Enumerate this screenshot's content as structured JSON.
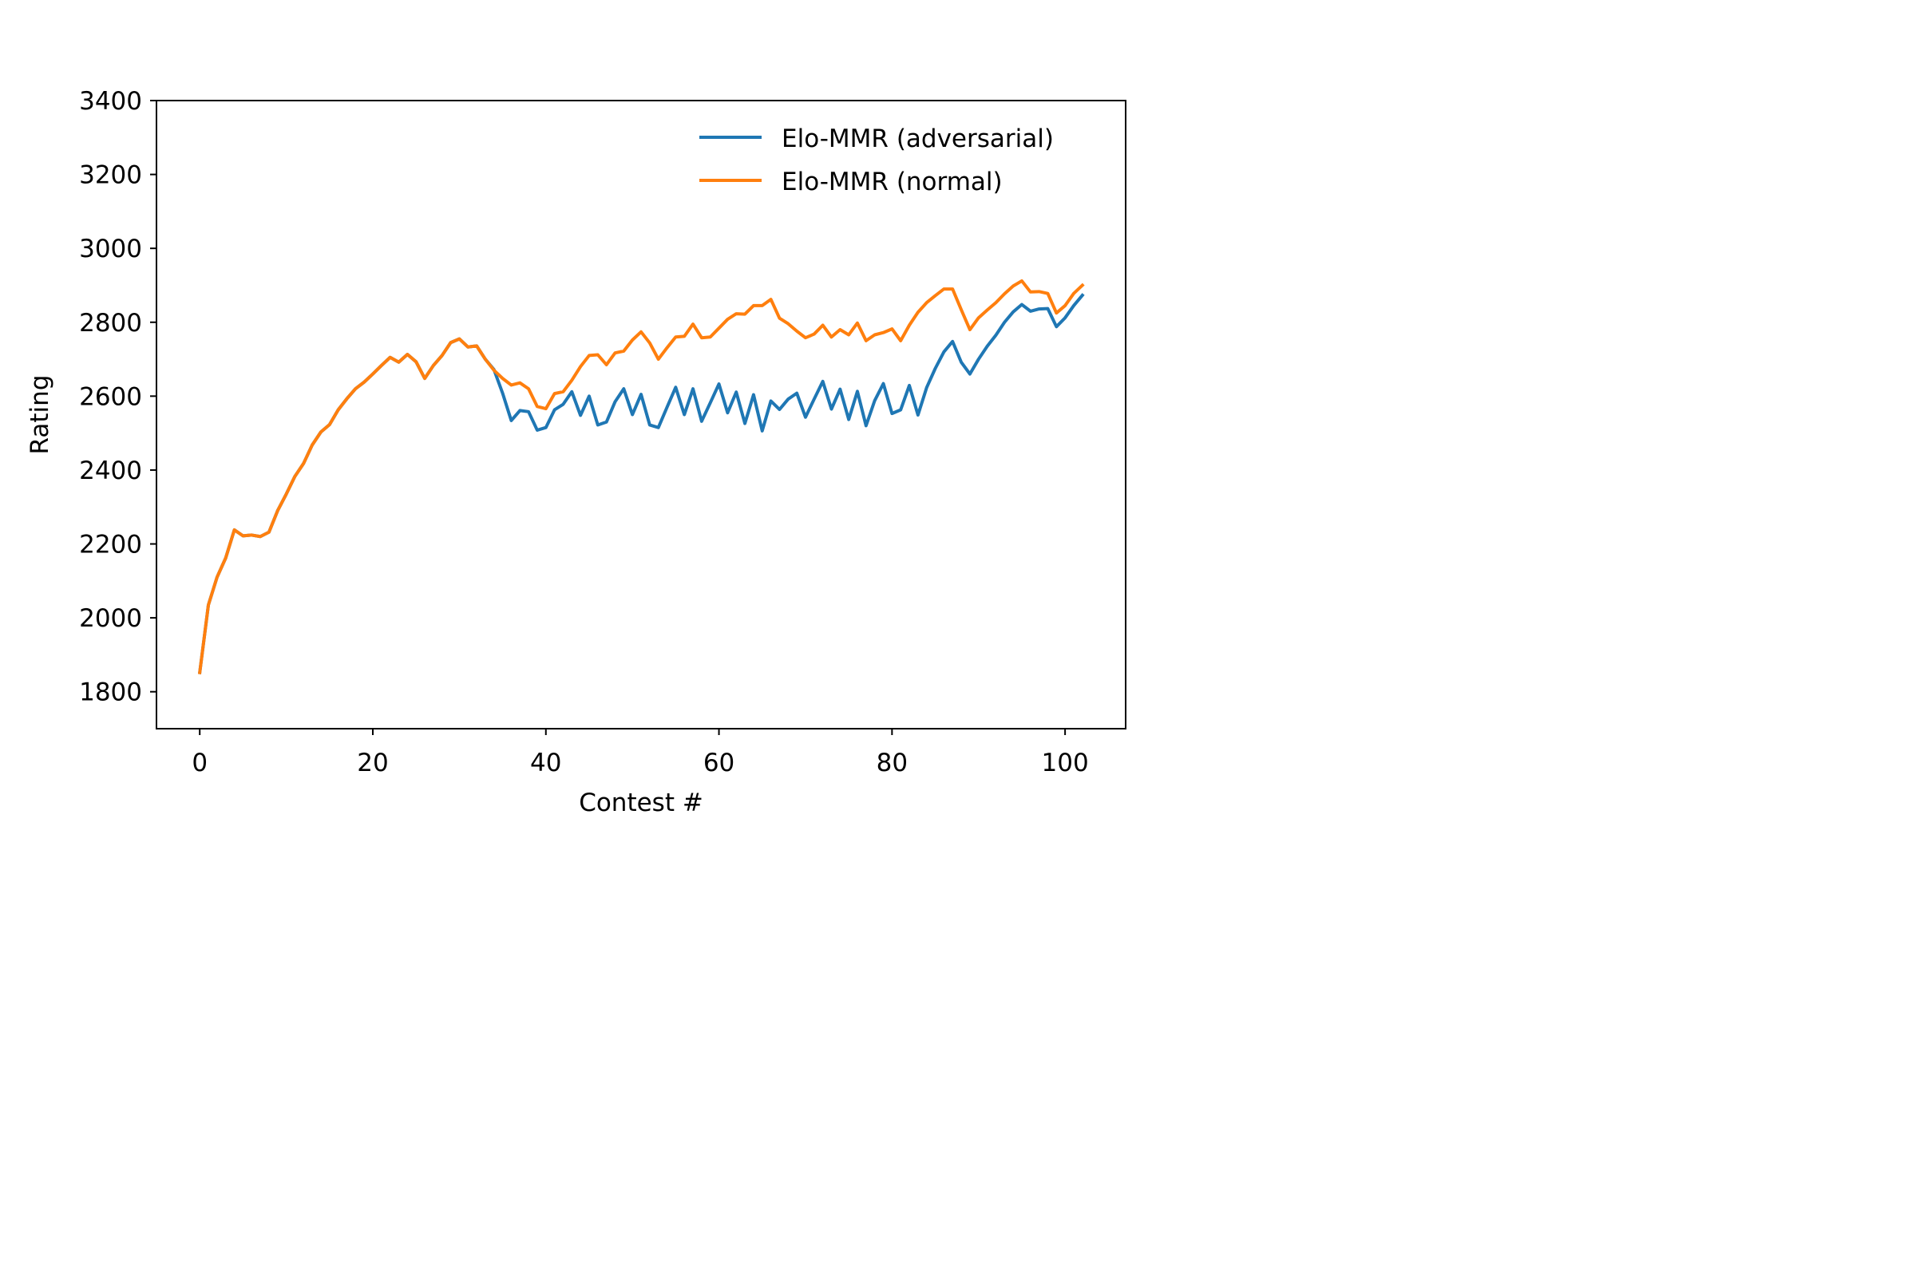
{
  "chart_data": {
    "type": "line",
    "title": "",
    "xlabel": "Contest #",
    "ylabel": "Rating",
    "xlim": [
      -5,
      107
    ],
    "ylim": [
      1700,
      3400
    ],
    "xticks": [
      0,
      20,
      40,
      60,
      80,
      100
    ],
    "yticks": [
      1800,
      2000,
      2200,
      2400,
      2600,
      2800,
      3000,
      3200,
      3400
    ],
    "grid": false,
    "legend_position": "top-right",
    "series": [
      {
        "name": "Elo-MMR (adversarial)",
        "color": "#1f77b4",
        "x_start": 0,
        "values": [
          1852,
          2035,
          2110,
          2162,
          2238,
          2222,
          2224,
          2220,
          2232,
          2290,
          2335,
          2383,
          2418,
          2468,
          2503,
          2523,
          2563,
          2593,
          2620,
          2638,
          2660,
          2683,
          2705,
          2692,
          2713,
          2693,
          2648,
          2683,
          2710,
          2745,
          2755,
          2733,
          2736,
          2700,
          2672,
          2608,
          2534,
          2561,
          2558,
          2508,
          2515,
          2563,
          2578,
          2612,
          2548,
          2600,
          2522,
          2530,
          2585,
          2620,
          2550,
          2605,
          2522,
          2515,
          2570,
          2624,
          2550,
          2620,
          2532,
          2582,
          2633,
          2555,
          2611,
          2526,
          2604,
          2506,
          2587,
          2564,
          2592,
          2608,
          2543,
          2592,
          2640,
          2565,
          2619,
          2537,
          2613,
          2520,
          2588,
          2634,
          2553,
          2563,
          2629,
          2549,
          2623,
          2675,
          2720,
          2748,
          2692,
          2660,
          2700,
          2735,
          2765,
          2800,
          2828,
          2848,
          2830,
          2836,
          2837,
          2788,
          2812,
          2845,
          2873
        ]
      },
      {
        "name": "Elo-MMR (normal)",
        "color": "#ff7f0e",
        "x_start": 0,
        "values": [
          1852,
          2035,
          2110,
          2162,
          2238,
          2222,
          2224,
          2220,
          2232,
          2290,
          2335,
          2383,
          2418,
          2468,
          2503,
          2523,
          2563,
          2593,
          2620,
          2638,
          2660,
          2683,
          2705,
          2692,
          2713,
          2693,
          2648,
          2683,
          2710,
          2745,
          2755,
          2733,
          2736,
          2700,
          2670,
          2648,
          2630,
          2636,
          2620,
          2572,
          2566,
          2607,
          2612,
          2643,
          2680,
          2710,
          2712,
          2685,
          2717,
          2722,
          2752,
          2774,
          2744,
          2700,
          2731,
          2760,
          2762,
          2795,
          2758,
          2760,
          2784,
          2808,
          2823,
          2822,
          2845,
          2845,
          2862,
          2811,
          2796,
          2776,
          2758,
          2768,
          2792,
          2760,
          2780,
          2766,
          2798,
          2750,
          2766,
          2772,
          2782,
          2750,
          2792,
          2827,
          2853,
          2872,
          2890,
          2890,
          2834,
          2780,
          2812,
          2833,
          2853,
          2877,
          2898,
          2912,
          2882,
          2883,
          2878,
          2825,
          2845,
          2878,
          2900
        ]
      }
    ]
  }
}
